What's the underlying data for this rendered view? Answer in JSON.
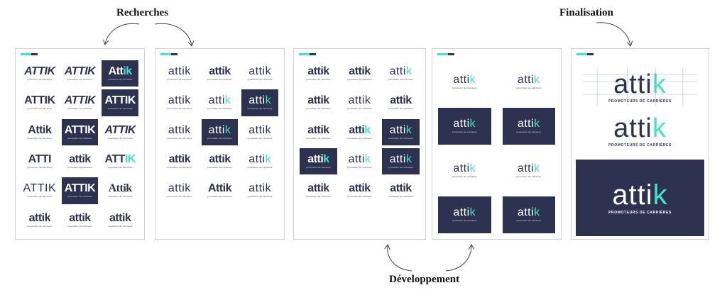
{
  "stages": {
    "recherches": "Recherches",
    "finalisation": "Finalisation",
    "developpement": "Développement"
  },
  "colors": {
    "accent": "#3fe3c9",
    "brand_dark": "#2d3250",
    "board_border": "#cfd0d4"
  },
  "logo_tagline": "promoteur de carrières",
  "final_tagline": "PROMOTEURS DE CARRIÈRES",
  "boards": {
    "board1": [
      {
        "main": "ATTIK",
        "acc": "",
        "dark": false,
        "style": "cap"
      },
      {
        "main": "ATTIK",
        "acc": "",
        "dark": false,
        "style": "cap"
      },
      {
        "main": "Att",
        "acc": "ik",
        "dark": true,
        "style": ""
      },
      {
        "main": "ATTIK",
        "acc": "",
        "dark": false,
        "style": ""
      },
      {
        "main": "ATTIK",
        "acc": "",
        "dark": false,
        "style": "cap"
      },
      {
        "main": "ATTIK",
        "acc": "",
        "dark": true,
        "style": ""
      },
      {
        "main": "Attik",
        "acc": "",
        "dark": false,
        "style": ""
      },
      {
        "main": "ATTIK",
        "acc": "",
        "dark": true,
        "style": ""
      },
      {
        "main": "ATTIK",
        "acc": "",
        "dark": false,
        "style": "cap"
      },
      {
        "main": "ATTI",
        "acc": "",
        "dark": false,
        "style": ""
      },
      {
        "main": "attik",
        "acc": "",
        "dark": false,
        "style": ""
      },
      {
        "main": "ATT",
        "acc": "IK",
        "dark": false,
        "style": ""
      },
      {
        "main": "ATTIK",
        "acc": "",
        "dark": false,
        "style": "thin"
      },
      {
        "main": "ATTIK",
        "acc": "",
        "dark": true,
        "style": ""
      },
      {
        "main": "Attik",
        "acc": "",
        "dark": false,
        "style": "serif"
      },
      {
        "main": "attik",
        "acc": "",
        "dark": false,
        "style": ""
      },
      {
        "main": "attik",
        "acc": "",
        "dark": false,
        "style": ""
      },
      {
        "main": "attik",
        "acc": "",
        "dark": false,
        "style": ""
      }
    ],
    "board2": [
      {
        "main": "attik",
        "acc": "",
        "dark": false,
        "style": "thin"
      },
      {
        "main": "attik",
        "acc": "",
        "dark": false,
        "style": ""
      },
      {
        "main": "attik",
        "acc": "",
        "dark": false,
        "style": "thin"
      },
      {
        "main": "attik",
        "acc": "",
        "dark": false,
        "style": "thin"
      },
      {
        "main": "atti",
        "acc": "k",
        "dark": false,
        "style": "thin"
      },
      {
        "main": "atti",
        "acc": "k",
        "dark": true,
        "style": "thin"
      },
      {
        "main": "attik",
        "acc": "",
        "dark": false,
        "style": "thin"
      },
      {
        "main": "atti",
        "acc": "k",
        "dark": true,
        "style": "thin"
      },
      {
        "main": "attik",
        "acc": "",
        "dark": false,
        "style": "thin"
      },
      {
        "main": "attik",
        "acc": "",
        "dark": false,
        "style": ""
      },
      {
        "main": "attik",
        "acc": "",
        "dark": false,
        "style": ""
      },
      {
        "main": "atti",
        "acc": "k",
        "dark": false,
        "style": "thin"
      },
      {
        "main": "attik",
        "acc": "",
        "dark": false,
        "style": "thin"
      },
      {
        "main": "Attik",
        "acc": "",
        "dark": false,
        "style": ""
      },
      {
        "main": "attik",
        "acc": "",
        "dark": false,
        "style": "thin"
      }
    ],
    "board3": [
      {
        "main": "attik",
        "acc": "",
        "dark": false,
        "style": ""
      },
      {
        "main": "attik",
        "acc": "",
        "dark": false,
        "style": ""
      },
      {
        "main": "atti",
        "acc": "k",
        "dark": false,
        "style": "thin"
      },
      {
        "main": "attik",
        "acc": "",
        "dark": false,
        "style": ""
      },
      {
        "main": "attik",
        "acc": "",
        "dark": false,
        "style": "thin"
      },
      {
        "main": "attik",
        "acc": "",
        "dark": false,
        "style": ""
      },
      {
        "main": "attik",
        "acc": "",
        "dark": false,
        "style": ""
      },
      {
        "main": "atti",
        "acc": "k",
        "dark": false,
        "style": ""
      },
      {
        "main": "atti",
        "acc": "k",
        "dark": true,
        "style": "thin"
      },
      {
        "main": "atti",
        "acc": "k",
        "dark": true,
        "style": ""
      },
      {
        "main": "atti",
        "acc": "k",
        "dark": false,
        "style": "thin"
      },
      {
        "main": "atti",
        "acc": "k",
        "dark": true,
        "style": "thin"
      },
      {
        "main": "attik",
        "acc": "",
        "dark": false,
        "style": ""
      },
      {
        "main": "attik",
        "acc": "",
        "dark": false,
        "style": ""
      },
      {
        "main": "attik",
        "acc": "",
        "dark": false,
        "style": ""
      }
    ],
    "board4": [
      {
        "main": "atti",
        "acc": "k",
        "dark": false,
        "style": "thin"
      },
      {
        "main": "atti",
        "acc": "k",
        "dark": false,
        "style": "thin"
      },
      {
        "main": "atti",
        "acc": "k",
        "dark": true,
        "style": "thin"
      },
      {
        "main": "atti",
        "acc": "k",
        "dark": true,
        "style": "thin"
      },
      {
        "main": "atti",
        "acc": "k",
        "dark": false,
        "style": "thin"
      },
      {
        "main": "atti",
        "acc": "k",
        "dark": false,
        "style": "thin"
      },
      {
        "main": "atti",
        "acc": "k",
        "dark": true,
        "style": "thin"
      },
      {
        "main": "atti",
        "acc": "k",
        "dark": true,
        "style": "thin"
      }
    ],
    "board5": {
      "top": {
        "main": "atti",
        "acc": "k"
      },
      "mid": {
        "main": "atti",
        "acc": "k"
      },
      "dark": {
        "main": "atti",
        "acc": "k"
      }
    }
  }
}
